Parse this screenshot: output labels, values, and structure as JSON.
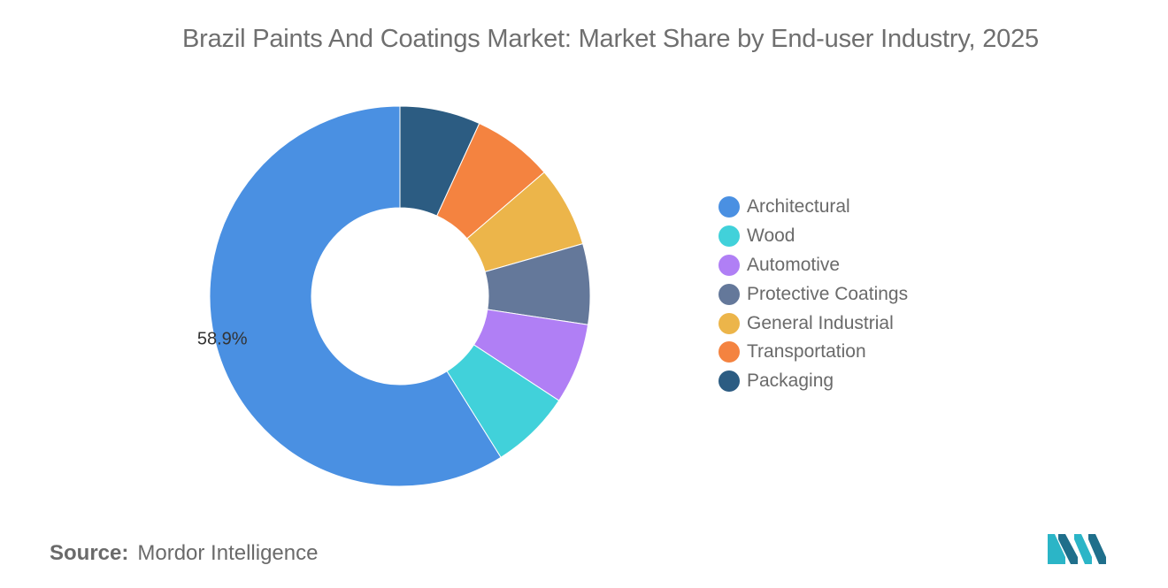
{
  "chart_data": {
    "type": "pie",
    "title": "Brazil Paints And Coatings Market: Market Share by End-user Industry, 2025",
    "donut": true,
    "slices": [
      {
        "name": "Architectural",
        "value": 58.9,
        "color": "#4a90e2",
        "label": "58.9%"
      },
      {
        "name": "Wood",
        "value": 6.85,
        "color": "#41d1da"
      },
      {
        "name": "Automotive",
        "value": 6.85,
        "color": "#b07ff5"
      },
      {
        "name": "Protective Coatings",
        "value": 6.85,
        "color": "#64789a"
      },
      {
        "name": "General Industrial",
        "value": 6.85,
        "color": "#ecb54a"
      },
      {
        "name": "Transportation",
        "value": 6.85,
        "color": "#f48340"
      },
      {
        "name": "Packaging",
        "value": 6.85,
        "color": "#2c5c82"
      }
    ],
    "legend_position": "right"
  },
  "source": {
    "label": "Source:",
    "value": "Mordor Intelligence"
  },
  "logo": {
    "icon": "mordor-intelligence-logo"
  }
}
